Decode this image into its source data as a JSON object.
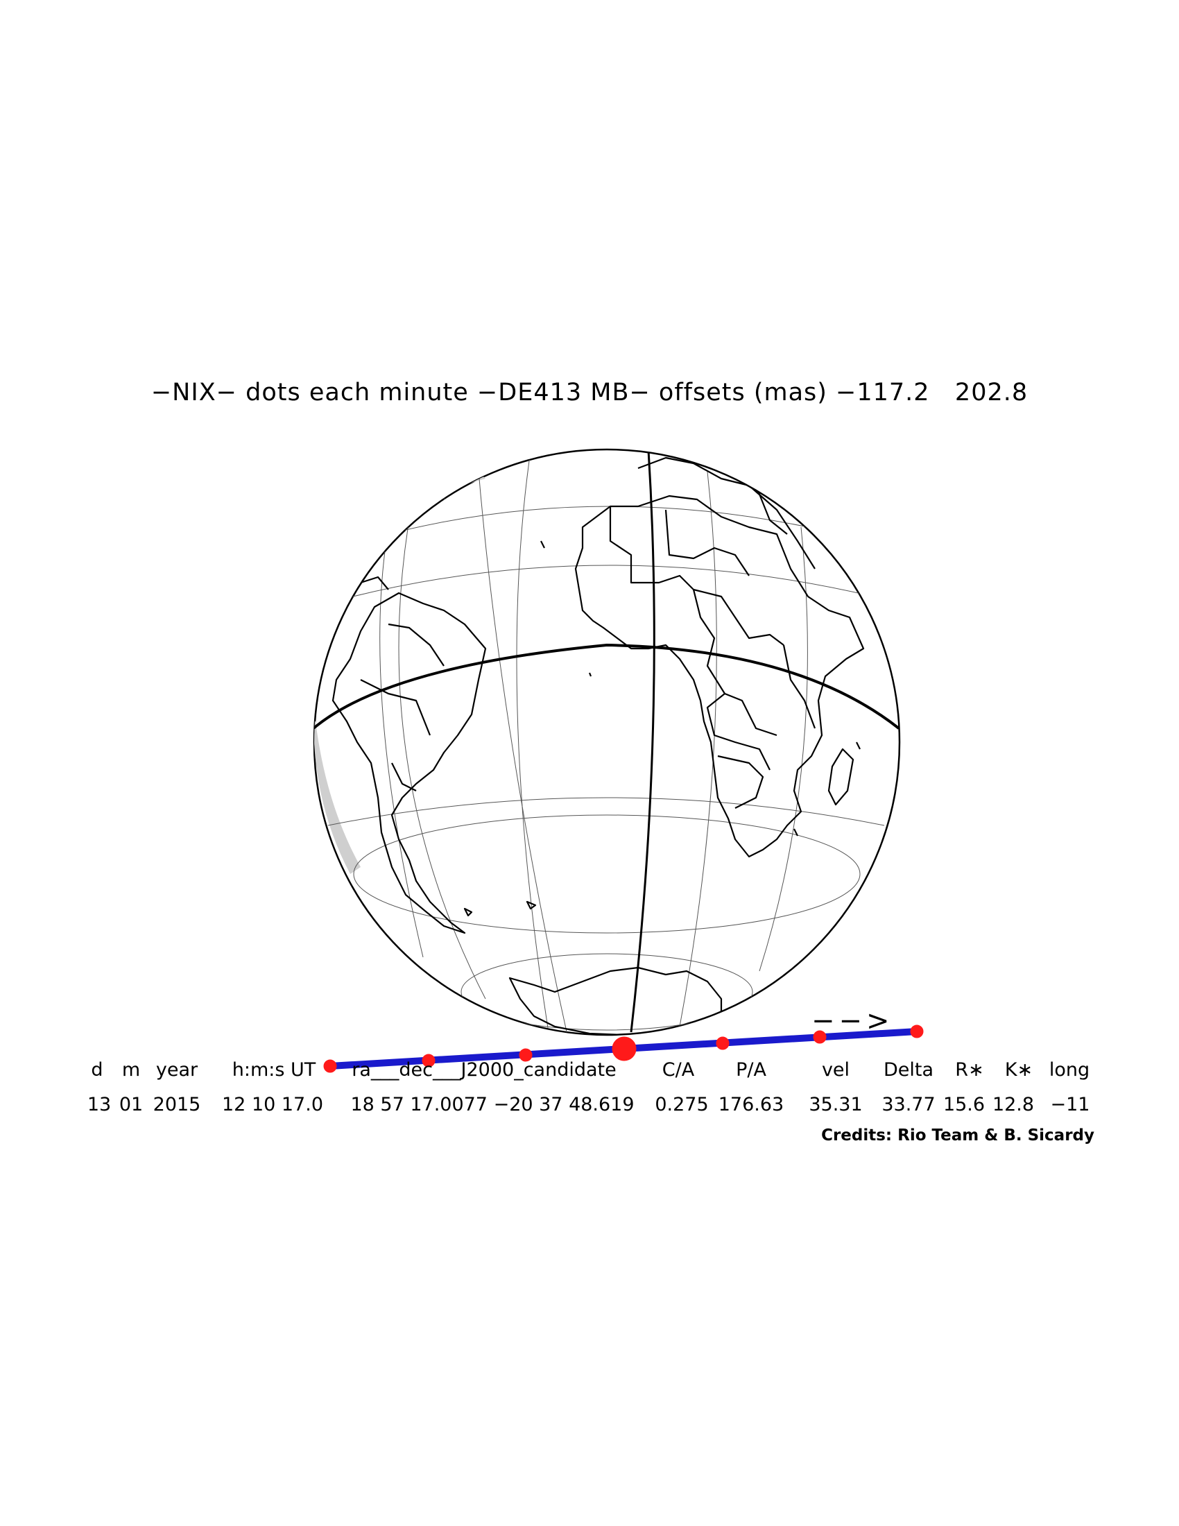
{
  "title": "−NIX− dots each minute −DE413 MB− offsets (mas) −117.2   202.8",
  "direction_arrow": "−−>",
  "table": {
    "headers": {
      "d": "d",
      "m": "m",
      "year": "year",
      "hms": "h:m:s UT",
      "radec": "ra___dec___J2000_candidate",
      "ca": "C/A",
      "pa": "P/A",
      "vel": "vel",
      "delta": "Delta",
      "rstar": "R∗",
      "kstar": "K∗",
      "long": "long"
    },
    "values": {
      "d": "13",
      "m": "01",
      "year": "2015",
      "hms": "12 10 17.0",
      "radec": "18 57 17.0077 −20 37 48.619",
      "ca": "0.275",
      "pa": "176.63",
      "vel": "35.31",
      "delta": "33.77",
      "rstar": "15.6",
      "kstar": "12.8",
      "long": "−11"
    }
  },
  "credits": "Credits: Rio Team & B. Sicardy",
  "colors": {
    "track": "#1a1acc",
    "dots": "#ff1a1a",
    "lines": "#000000",
    "graticule": "#555555"
  }
}
